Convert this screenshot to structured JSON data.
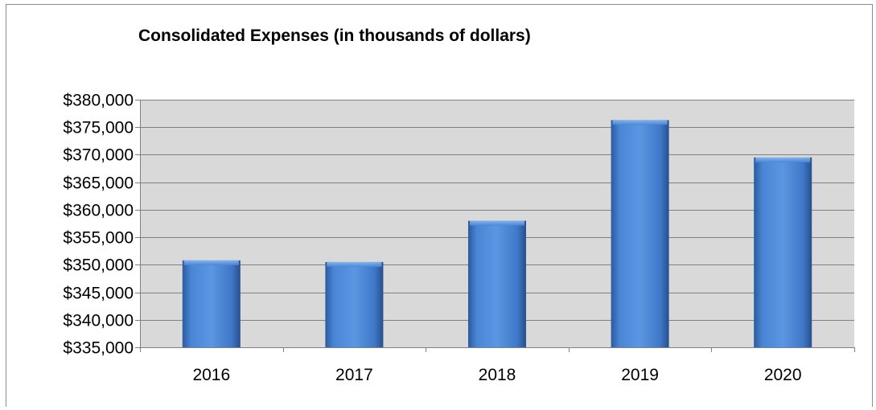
{
  "chart_data": {
    "type": "bar",
    "title": "Consolidated Expenses (in thousands of dollars)",
    "xlabel": "",
    "ylabel": "",
    "categories": [
      "2016",
      "2017",
      "2018",
      "2019",
      "2020"
    ],
    "values": [
      350800,
      350500,
      358000,
      376300,
      369500
    ],
    "ylim": [
      335000,
      380000
    ],
    "ytick_step": 5000,
    "yticks": [
      "$335,000",
      "$340,000",
      "$345,000",
      "$350,000",
      "$355,000",
      "$360,000",
      "$365,000",
      "$370,000",
      "$375,000",
      "$380,000"
    ],
    "grid": true,
    "legend": "none",
    "colors": {
      "bar": "#4a86d6",
      "bar_dark": "#2b5a9e",
      "plot_background": "#d9d9d9",
      "gridline": "#808080"
    }
  }
}
